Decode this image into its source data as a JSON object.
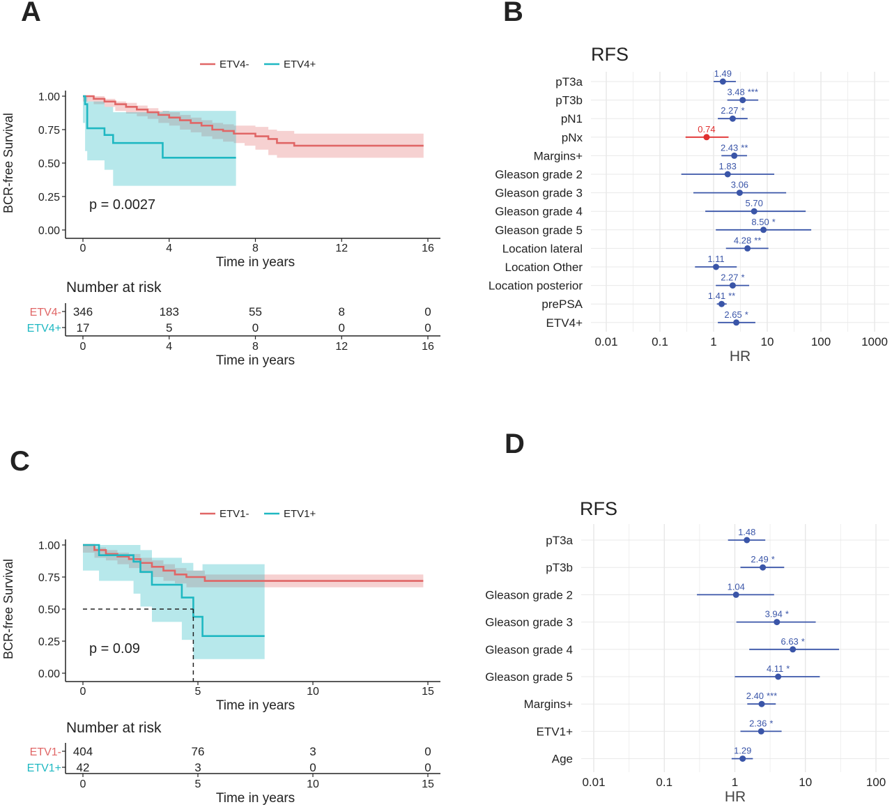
{
  "chart_data": [
    {
      "panel": "A",
      "type": "line",
      "legend": [
        "ETV4-",
        "ETV4+"
      ],
      "xlabel": "Time in years",
      "ylabel": "BCR-free Survival",
      "xticks": [
        0,
        4,
        8,
        12,
        16
      ],
      "yticks": [
        "0.00",
        "0.25",
        "0.50",
        "0.75",
        "1.00"
      ],
      "xlim": [
        0,
        16
      ],
      "ylim": [
        0,
        1
      ],
      "annotation": "p = 0.0027",
      "colors": [
        "#e06666",
        "#1fb8c2"
      ],
      "series": [
        {
          "name": "ETV4-",
          "x": [
            0,
            0.5,
            1,
            1.5,
            2,
            2.5,
            3,
            3.5,
            4,
            4.5,
            5,
            5.5,
            6,
            6.5,
            7,
            7.5,
            8,
            8.6,
            9,
            9.8,
            15.8
          ],
          "y": [
            1.0,
            0.98,
            0.96,
            0.94,
            0.92,
            0.9,
            0.88,
            0.86,
            0.84,
            0.82,
            0.8,
            0.78,
            0.75,
            0.74,
            0.72,
            0.72,
            0.7,
            0.68,
            0.65,
            0.63,
            0.63
          ],
          "ci_low": [
            0.99,
            0.96,
            0.94,
            0.92,
            0.89,
            0.87,
            0.85,
            0.83,
            0.8,
            0.78,
            0.75,
            0.73,
            0.7,
            0.68,
            0.66,
            0.65,
            0.63,
            0.6,
            0.56,
            0.54,
            0.54
          ],
          "ci_high": [
            1.0,
            1.0,
            0.98,
            0.96,
            0.95,
            0.93,
            0.91,
            0.89,
            0.88,
            0.86,
            0.84,
            0.82,
            0.8,
            0.79,
            0.78,
            0.78,
            0.77,
            0.75,
            0.74,
            0.72,
            0.72
          ]
        },
        {
          "name": "ETV4+",
          "x": [
            0,
            0.1,
            0.2,
            1.0,
            1.4,
            3.7,
            7.1
          ],
          "y": [
            1.0,
            0.94,
            0.76,
            0.71,
            0.65,
            0.54,
            0.54
          ],
          "ci_low": [
            1.0,
            0.8,
            0.59,
            0.52,
            0.45,
            0.33,
            0.33
          ],
          "ci_high": [
            1.0,
            1.0,
            0.96,
            0.92,
            0.88,
            0.89,
            0.89
          ]
        }
      ],
      "risk_table": {
        "title": "Number at risk",
        "times": [
          0,
          4,
          8,
          12,
          16
        ],
        "rows": [
          {
            "name": "ETV4-",
            "values": [
              "346",
              "183",
              "55",
              "8",
              "0"
            ]
          },
          {
            "name": "ETV4+",
            "values": [
              "17",
              "5",
              "0",
              "0",
              "0"
            ]
          }
        ]
      }
    },
    {
      "panel": "B",
      "type": "scatter",
      "title": "RFS",
      "xlabel": "HR",
      "xscale": "log",
      "xticks": [
        "0.01",
        "0.1",
        "1",
        "10",
        "100",
        "1000"
      ],
      "xlim": [
        0.01,
        1000
      ],
      "rows": [
        {
          "label": "pT3a",
          "hr": 1.49,
          "lo": 1.0,
          "hi": 2.6,
          "text": "1.49",
          "sig": ""
        },
        {
          "label": "pT3b",
          "hr": 3.48,
          "lo": 1.8,
          "hi": 6.8,
          "text": "3.48",
          "sig": "***"
        },
        {
          "label": "pN1",
          "hr": 2.27,
          "lo": 1.2,
          "hi": 4.3,
          "text": "2.27",
          "sig": "*"
        },
        {
          "label": "pNx",
          "hr": 0.74,
          "lo": 0.3,
          "hi": 1.9,
          "text": "0.74",
          "sig": ""
        },
        {
          "label": "Margins+",
          "hr": 2.43,
          "lo": 1.4,
          "hi": 4.2,
          "text": "2.43",
          "sig": "**"
        },
        {
          "label": "Gleason grade 2",
          "hr": 1.83,
          "lo": 0.25,
          "hi": 13.5,
          "text": "1.83",
          "sig": ""
        },
        {
          "label": "Gleason grade 3",
          "hr": 3.06,
          "lo": 0.42,
          "hi": 22.5,
          "text": "3.06",
          "sig": ""
        },
        {
          "label": "Gleason grade 4",
          "hr": 5.7,
          "lo": 0.7,
          "hi": 52.0,
          "text": "5.70",
          "sig": ""
        },
        {
          "label": "Gleason grade 5",
          "hr": 8.5,
          "lo": 1.1,
          "hi": 66.0,
          "text": "8.50",
          "sig": "*"
        },
        {
          "label": "Location lateral",
          "hr": 4.28,
          "lo": 1.7,
          "hi": 10.5,
          "text": "4.28",
          "sig": "**"
        },
        {
          "label": "Location Other",
          "hr": 1.11,
          "lo": 0.45,
          "hi": 2.7,
          "text": "1.11",
          "sig": ""
        },
        {
          "label": "Location posterior",
          "hr": 2.27,
          "lo": 1.1,
          "hi": 4.6,
          "text": "2.27",
          "sig": "*"
        },
        {
          "label": "prePSA",
          "hr": 1.41,
          "lo": 1.15,
          "hi": 1.75,
          "text": "1.41",
          "sig": "**"
        },
        {
          "label": "ETV4+",
          "hr": 2.65,
          "lo": 1.2,
          "hi": 6.0,
          "text": "2.65",
          "sig": "*"
        }
      ],
      "colors": {
        "risk": "#3a55a8",
        "protective": "#e03030"
      }
    },
    {
      "panel": "C",
      "type": "line",
      "legend": [
        "ETV1-",
        "ETV1+"
      ],
      "xlabel": "Time in years",
      "ylabel": "BCR-free Survival",
      "xticks": [
        0,
        5,
        10,
        15
      ],
      "yticks": [
        "0.00",
        "0.25",
        "0.50",
        "0.75",
        "1.00"
      ],
      "xlim": [
        0,
        15
      ],
      "ylim": [
        0,
        1
      ],
      "annotation": "p = 0.09",
      "median_line": {
        "x": 4.8,
        "y": 0.5
      },
      "colors": [
        "#e06666",
        "#1fb8c2"
      ],
      "series": [
        {
          "name": "ETV1-",
          "x": [
            0,
            0.5,
            1,
            1.5,
            2,
            2.5,
            3,
            3.5,
            4,
            4.5,
            5.3,
            14.8
          ],
          "y": [
            1.0,
            0.96,
            0.93,
            0.91,
            0.89,
            0.86,
            0.83,
            0.8,
            0.77,
            0.75,
            0.72,
            0.72
          ],
          "ci_low": [
            0.99,
            0.94,
            0.9,
            0.88,
            0.85,
            0.82,
            0.78,
            0.75,
            0.72,
            0.7,
            0.67,
            0.67
          ],
          "ci_high": [
            1.0,
            0.98,
            0.96,
            0.94,
            0.93,
            0.9,
            0.88,
            0.85,
            0.82,
            0.8,
            0.77,
            0.77
          ]
        },
        {
          "name": "ETV1+",
          "x": [
            0,
            0.7,
            2.2,
            2.5,
            3.0,
            4.3,
            4.8,
            5.2,
            7.9
          ],
          "y": [
            1.0,
            0.92,
            0.87,
            0.79,
            0.69,
            0.59,
            0.44,
            0.29,
            0.29
          ],
          "ci_low": [
            1.0,
            0.8,
            0.72,
            0.62,
            0.52,
            0.4,
            0.26,
            0.11,
            0.11
          ],
          "ci_high": [
            1.0,
            1.0,
            1.0,
            0.96,
            0.9,
            0.86,
            0.8,
            0.85,
            0.85
          ]
        }
      ],
      "risk_table": {
        "title": "Number at risk",
        "times": [
          0,
          5,
          10,
          15
        ],
        "rows": [
          {
            "name": "ETV1-",
            "values": [
              "404",
              "76",
              "3",
              "0"
            ]
          },
          {
            "name": "ETV1+",
            "values": [
              "42",
              "3",
              "0",
              "0"
            ]
          }
        ]
      }
    },
    {
      "panel": "D",
      "type": "scatter",
      "title": "RFS",
      "xlabel": "HR",
      "xscale": "log",
      "xticks": [
        "0.01",
        "0.1",
        "1",
        "10",
        "100"
      ],
      "xlim": [
        0.01,
        100
      ],
      "rows": [
        {
          "label": "pT3a",
          "hr": 1.48,
          "lo": 0.8,
          "hi": 2.7,
          "text": "1.48",
          "sig": ""
        },
        {
          "label": "pT3b",
          "hr": 2.49,
          "lo": 1.2,
          "hi": 5.0,
          "text": "2.49",
          "sig": "*"
        },
        {
          "label": "Gleason grade 2",
          "hr": 1.04,
          "lo": 0.29,
          "hi": 3.6,
          "text": "1.04",
          "sig": ""
        },
        {
          "label": "Gleason grade 3",
          "hr": 3.94,
          "lo": 1.05,
          "hi": 14.0,
          "text": "3.94",
          "sig": "*"
        },
        {
          "label": "Gleason grade 4",
          "hr": 6.63,
          "lo": 1.6,
          "hi": 30.0,
          "text": "6.63",
          "sig": "*"
        },
        {
          "label": "Gleason grade 5",
          "hr": 4.11,
          "lo": 1.0,
          "hi": 16.0,
          "text": "4.11",
          "sig": "*"
        },
        {
          "label": "Margins+",
          "hr": 2.4,
          "lo": 1.5,
          "hi": 3.8,
          "text": "2.40",
          "sig": "***"
        },
        {
          "label": "ETV1+",
          "hr": 2.36,
          "lo": 1.2,
          "hi": 4.6,
          "text": "2.36",
          "sig": "*"
        },
        {
          "label": "Age",
          "hr": 1.29,
          "lo": 0.9,
          "hi": 1.8,
          "text": "1.29",
          "sig": ""
        }
      ],
      "colors": {
        "risk": "#3a55a8",
        "protective": "#e03030"
      }
    }
  ],
  "panel_labels": [
    "A",
    "B",
    "C",
    "D"
  ]
}
